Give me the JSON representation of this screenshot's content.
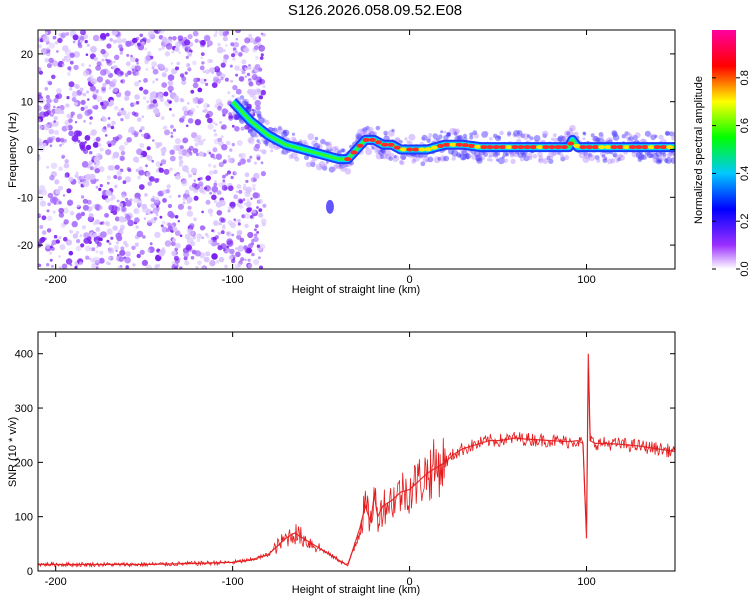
{
  "title": "S126.2026.058.09.52.E08",
  "colors": {
    "snr_line": "#e41a1c",
    "points": "#7b2cf0",
    "axis": "#000000"
  },
  "chart_data": [
    {
      "type": "heatmap",
      "name": "spectrogram",
      "xlabel": "Height of straight line (km)",
      "ylabel": "Frequency (Hz)",
      "xlim": [
        -210,
        150
      ],
      "ylim": [
        -25,
        25
      ],
      "xticks": [
        -200,
        -100,
        0,
        100
      ],
      "xtick_labels": [
        "-200",
        "-100",
        "0",
        "100"
      ],
      "yticks": [
        -20,
        -10,
        0,
        10,
        20
      ],
      "ytick_labels": [
        "-20",
        "-10",
        "0",
        "10",
        "20"
      ],
      "track": {
        "x": [
          -100,
          -90,
          -80,
          -70,
          -60,
          -50,
          -40,
          -35,
          -30,
          -25,
          -20,
          -15,
          -10,
          -5,
          0,
          10,
          20,
          30,
          40,
          50,
          60,
          70,
          80,
          90,
          92,
          95,
          100,
          110,
          120,
          130,
          140,
          150
        ],
        "y": [
          10,
          6,
          3,
          1,
          0,
          -1,
          -2,
          -2,
          0,
          2,
          2,
          1,
          1,
          0,
          0,
          0,
          1,
          1,
          0.5,
          0.5,
          0.5,
          0.5,
          0.5,
          0.5,
          2,
          0.5,
          0.5,
          0.5,
          0.5,
          0.5,
          0.5,
          0.5
        ]
      },
      "colorbar": {
        "label": "Normalized spectral amplitude",
        "range": [
          0,
          1
        ],
        "ticks": [
          0.0,
          0.2,
          0.4,
          0.6,
          0.8
        ],
        "tick_labels": [
          "0.0",
          "0.2",
          "0.4",
          "0.6",
          "0.8"
        ]
      }
    },
    {
      "type": "line",
      "name": "snr",
      "xlabel": "Height of straight line (km)",
      "ylabel": "SNR (10 * v/v)",
      "xlim": [
        -210,
        150
      ],
      "ylim": [
        0,
        440
      ],
      "xticks": [
        -200,
        -100,
        0,
        100
      ],
      "xtick_labels": [
        "-200",
        "-100",
        "0",
        "100"
      ],
      "yticks": [
        0,
        100,
        200,
        300,
        400
      ],
      "ytick_labels": [
        "0",
        "100",
        "200",
        "300",
        "400"
      ],
      "x": [
        -210,
        -180,
        -150,
        -120,
        -100,
        -90,
        -80,
        -75,
        -70,
        -65,
        -60,
        -55,
        -50,
        -45,
        -40,
        -35,
        -32,
        -28,
        -25,
        -22,
        -20,
        -18,
        -15,
        -10,
        -5,
        0,
        5,
        10,
        15,
        20,
        25,
        30,
        35,
        40,
        45,
        50,
        55,
        60,
        65,
        70,
        80,
        90,
        95,
        98,
        100,
        101,
        102,
        105,
        110,
        120,
        130,
        140,
        150
      ],
      "y": [
        12,
        12,
        12,
        14,
        16,
        20,
        30,
        45,
        60,
        70,
        60,
        50,
        40,
        30,
        20,
        10,
        40,
        80,
        120,
        90,
        140,
        100,
        120,
        130,
        145,
        150,
        165,
        180,
        190,
        200,
        215,
        225,
        230,
        235,
        240,
        240,
        242,
        245,
        243,
        242,
        240,
        238,
        240,
        235,
        60,
        400,
        240,
        235,
        235,
        233,
        230,
        225,
        220
      ]
    }
  ]
}
